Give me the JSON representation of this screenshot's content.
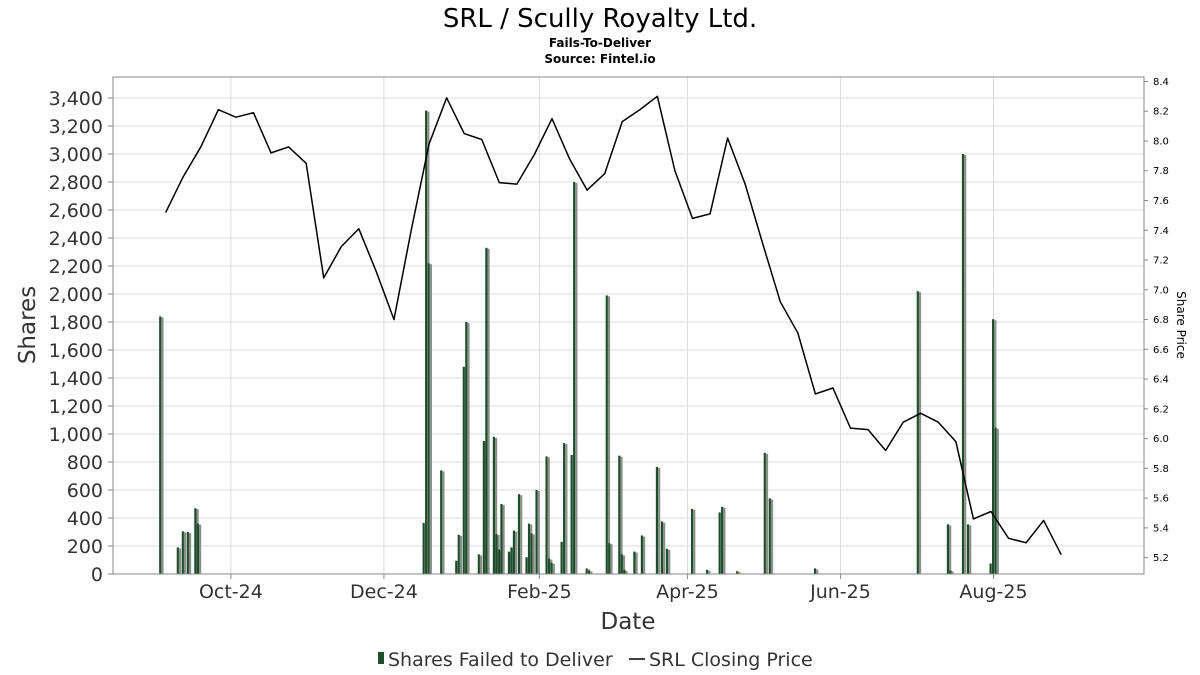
{
  "chart_data": {
    "type": "bar",
    "title": "SRL / Scully Royalty Ltd.",
    "subtitle": "Fails-To-Deliver",
    "source": "Source: Fintel.io",
    "xlabel": "Date",
    "ylabel": "Shares",
    "y2label": "Share Price",
    "xlim": [
      "2024-08-15",
      "2025-09-30"
    ],
    "ylim": [
      0,
      3550
    ],
    "y2lim": [
      5.09,
      8.43
    ],
    "yticks": [
      "0",
      "200",
      "400",
      "600",
      "800",
      "1,000",
      "1,200",
      "1,400",
      "1,600",
      "1,800",
      "2,000",
      "2,200",
      "2,400",
      "2,600",
      "2,800",
      "3,000",
      "3,200",
      "3,400"
    ],
    "y2ticks": [
      "5.2",
      "5.4",
      "5.6",
      "5.8",
      "6.0",
      "6.2",
      "6.4",
      "6.6",
      "6.8",
      "7.0",
      "7.2",
      "7.4",
      "7.6",
      "7.8",
      "8.0",
      "8.2",
      "8.4"
    ],
    "xticks": [
      {
        "date": "2024-10-01",
        "label": "Oct-24"
      },
      {
        "date": "2024-12-01",
        "label": "Dec-24"
      },
      {
        "date": "2025-02-01",
        "label": "Feb-25"
      },
      {
        "date": "2025-04-01",
        "label": "Apr-25"
      },
      {
        "date": "2025-06-01",
        "label": "Jun-25"
      },
      {
        "date": "2025-08-01",
        "label": "Aug-25"
      }
    ],
    "grid": true,
    "legend_position": "bottom",
    "series": [
      {
        "name": "Shares Failed to Deliver",
        "type": "bar",
        "axis": "left",
        "color": "#1e4d2b",
        "points": [
          [
            "2024-09-03",
            1840
          ],
          [
            "2024-09-10",
            190
          ],
          [
            "2024-09-12",
            305
          ],
          [
            "2024-09-14",
            300
          ],
          [
            "2024-09-17",
            470
          ],
          [
            "2024-09-18",
            360
          ],
          [
            "2024-12-17",
            365
          ],
          [
            "2024-12-18",
            3310
          ],
          [
            "2024-12-19",
            2220
          ],
          [
            "2024-12-24",
            740
          ],
          [
            "2024-12-30",
            95
          ],
          [
            "2024-12-31",
            280
          ],
          [
            "2025-01-02",
            1480
          ],
          [
            "2025-01-03",
            1800
          ],
          [
            "2025-01-08",
            140
          ],
          [
            "2025-01-10",
            950
          ],
          [
            "2025-01-11",
            2330
          ],
          [
            "2025-01-14",
            980
          ],
          [
            "2025-01-15",
            285
          ],
          [
            "2025-01-16",
            175
          ],
          [
            "2025-01-17",
            500
          ],
          [
            "2025-01-20",
            160
          ],
          [
            "2025-01-21",
            190
          ],
          [
            "2025-01-22",
            310
          ],
          [
            "2025-01-24",
            570
          ],
          [
            "2025-01-27",
            120
          ],
          [
            "2025-01-28",
            360
          ],
          [
            "2025-01-29",
            290
          ],
          [
            "2025-01-31",
            600
          ],
          [
            "2025-02-04",
            840
          ],
          [
            "2025-02-05",
            110
          ],
          [
            "2025-02-06",
            80
          ],
          [
            "2025-02-10",
            230
          ],
          [
            "2025-02-11",
            935
          ],
          [
            "2025-02-14",
            850
          ],
          [
            "2025-02-15",
            2800
          ],
          [
            "2025-02-20",
            40
          ],
          [
            "2025-02-21",
            25
          ],
          [
            "2025-02-28",
            1990
          ],
          [
            "2025-03-01",
            220
          ],
          [
            "2025-03-05",
            845
          ],
          [
            "2025-03-06",
            140
          ],
          [
            "2025-03-07",
            30
          ],
          [
            "2025-03-11",
            160
          ],
          [
            "2025-03-14",
            275
          ],
          [
            "2025-03-20",
            765
          ],
          [
            "2025-03-22",
            375
          ],
          [
            "2025-03-24",
            180
          ],
          [
            "2025-04-03",
            465
          ],
          [
            "2025-04-09",
            30
          ],
          [
            "2025-04-14",
            440
          ],
          [
            "2025-04-15",
            480
          ],
          [
            "2025-04-21",
            20
          ],
          [
            "2025-05-02",
            865
          ],
          [
            "2025-05-04",
            540
          ],
          [
            "2025-05-22",
            40
          ],
          [
            "2025-07-02",
            2020
          ],
          [
            "2025-07-14",
            355
          ],
          [
            "2025-07-15",
            25
          ],
          [
            "2025-07-20",
            3000
          ],
          [
            "2025-07-22",
            355
          ],
          [
            "2025-07-31",
            75
          ],
          [
            "2025-08-01",
            1820
          ],
          [
            "2025-08-02",
            1045
          ]
        ]
      },
      {
        "name": "SRL Closing Price",
        "type": "line",
        "axis": "right",
        "color": "#000000",
        "points": [
          [
            "2024-09-05",
            7.52
          ],
          [
            "2024-09-12",
            7.76
          ],
          [
            "2024-09-19",
            7.96
          ],
          [
            "2024-09-26",
            8.21
          ],
          [
            "2024-10-03",
            8.16
          ],
          [
            "2024-10-10",
            8.19
          ],
          [
            "2024-10-17",
            7.92
          ],
          [
            "2024-10-24",
            7.96
          ],
          [
            "2024-10-31",
            7.85
          ],
          [
            "2024-11-07",
            7.08
          ],
          [
            "2024-11-14",
            7.29
          ],
          [
            "2024-11-21",
            7.41
          ],
          [
            "2024-11-28",
            7.12
          ],
          [
            "2024-12-05",
            6.8
          ],
          [
            "2024-12-12",
            7.41
          ],
          [
            "2024-12-19",
            7.98
          ],
          [
            "2024-12-26",
            8.29
          ],
          [
            "2025-01-02",
            8.05
          ],
          [
            "2025-01-09",
            8.01
          ],
          [
            "2025-01-16",
            7.72
          ],
          [
            "2025-01-23",
            7.71
          ],
          [
            "2025-01-30",
            7.91
          ],
          [
            "2025-02-06",
            8.15
          ],
          [
            "2025-02-13",
            7.88
          ],
          [
            "2025-02-20",
            7.67
          ],
          [
            "2025-02-27",
            7.78
          ],
          [
            "2025-03-06",
            8.13
          ],
          [
            "2025-03-13",
            8.21
          ],
          [
            "2025-03-20",
            8.3
          ],
          [
            "2025-03-27",
            7.8
          ],
          [
            "2025-04-03",
            7.48
          ],
          [
            "2025-04-10",
            7.51
          ],
          [
            "2025-04-17",
            8.02
          ],
          [
            "2025-04-24",
            7.71
          ],
          [
            "2025-05-01",
            7.31
          ],
          [
            "2025-05-08",
            6.92
          ],
          [
            "2025-05-15",
            6.71
          ],
          [
            "2025-05-22",
            6.3
          ],
          [
            "2025-05-29",
            6.34
          ],
          [
            "2025-06-05",
            6.07
          ],
          [
            "2025-06-12",
            6.06
          ],
          [
            "2025-06-19",
            5.92
          ],
          [
            "2025-06-26",
            6.11
          ],
          [
            "2025-07-03",
            6.17
          ],
          [
            "2025-07-10",
            6.11
          ],
          [
            "2025-07-17",
            5.98
          ],
          [
            "2025-07-24",
            5.46
          ],
          [
            "2025-07-31",
            5.51
          ],
          [
            "2025-08-07",
            5.33
          ],
          [
            "2025-08-14",
            5.3
          ],
          [
            "2025-08-21",
            5.45
          ],
          [
            "2025-08-28",
            5.22
          ]
        ]
      }
    ]
  }
}
